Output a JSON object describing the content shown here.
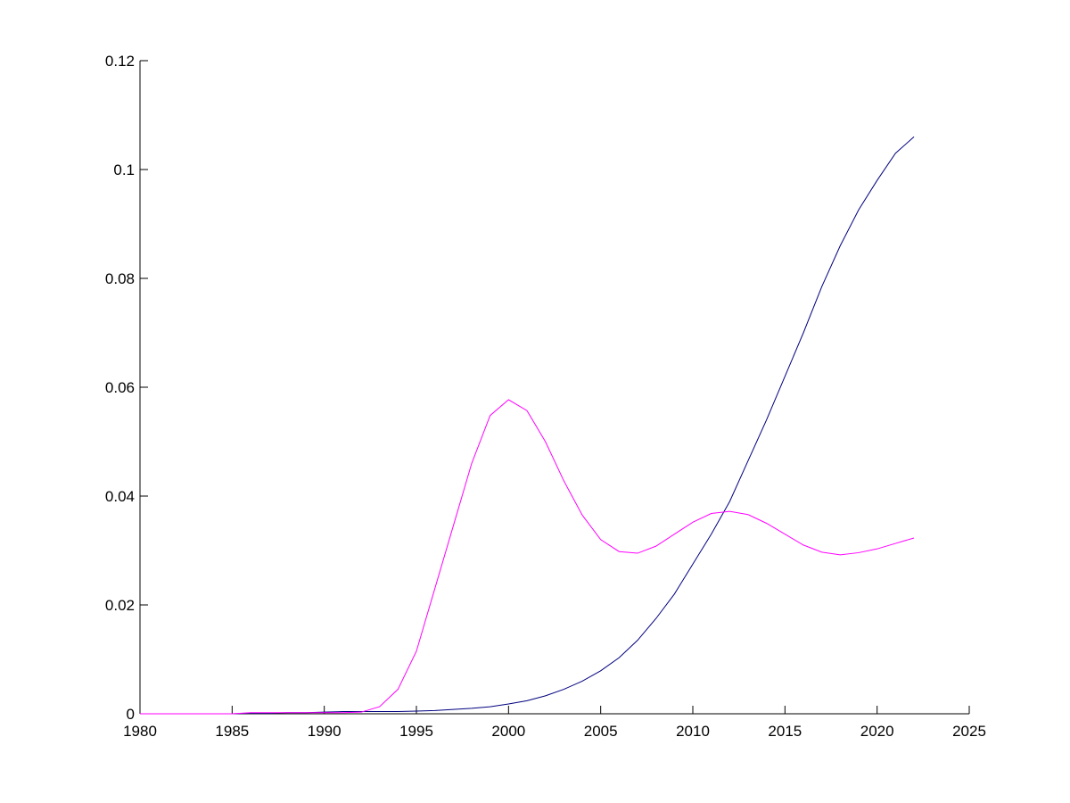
{
  "chart_data": {
    "type": "line",
    "x": [
      1980,
      1981,
      1982,
      1983,
      1984,
      1985,
      1986,
      1987,
      1988,
      1989,
      1990,
      1991,
      1992,
      1993,
      1994,
      1995,
      1996,
      1997,
      1998,
      1999,
      2000,
      2001,
      2002,
      2003,
      2004,
      2005,
      2006,
      2007,
      2008,
      2009,
      2010,
      2011,
      2012,
      2013,
      2014,
      2015,
      2016,
      2017,
      2018,
      2019,
      2020,
      2021,
      2022
    ],
    "series": [
      {
        "color": "#00007f",
        "values": [
          0,
          0,
          0,
          0,
          0,
          0,
          0.0001,
          0.0001,
          0.0002,
          0.0002,
          0.0003,
          0.0004,
          0.0004,
          0.0004,
          0.0004,
          0.0005,
          0.0006,
          0.0008,
          0.001,
          0.0013,
          0.0018,
          0.0024,
          0.0033,
          0.0045,
          0.006,
          0.0079,
          0.0103,
          0.0135,
          0.0175,
          0.022,
          0.0275,
          0.033,
          0.039,
          0.0465,
          0.054,
          0.062,
          0.07,
          0.0785,
          0.086,
          0.0926,
          0.098,
          0.103,
          0.106
        ]
      },
      {
        "color": "#ff00ff",
        "values": [
          0,
          0,
          0,
          0,
          0,
          0,
          0.0002,
          0.0002,
          0.0002,
          0.0002,
          0.0002,
          0.0002,
          0.0003,
          0.0013,
          0.0045,
          0.0115,
          0.023,
          0.0345,
          0.046,
          0.0548,
          0.0577,
          0.0557,
          0.05,
          0.0428,
          0.0365,
          0.032,
          0.0298,
          0.0295,
          0.0308,
          0.033,
          0.0352,
          0.0368,
          0.0372,
          0.0366,
          0.035,
          0.033,
          0.031,
          0.0297,
          0.0292,
          0.0296,
          0.0303,
          0.0313,
          0.0323
        ]
      }
    ],
    "xlim": [
      1980,
      2025
    ],
    "xticks": [
      1980,
      1985,
      1990,
      1995,
      2000,
      2005,
      2010,
      2015,
      2020,
      2025
    ],
    "ylim": [
      0,
      0.12
    ],
    "yticks": [
      0,
      0.02,
      0.04,
      0.06,
      0.08,
      0.1,
      0.12
    ],
    "grid": false
  }
}
